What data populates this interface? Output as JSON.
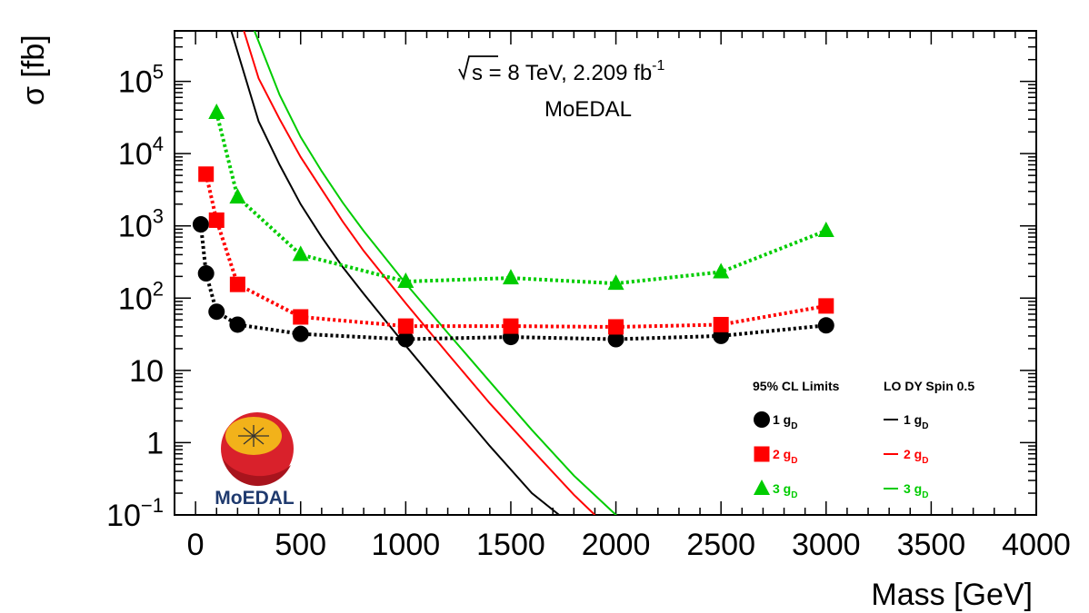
{
  "chart_data": {
    "type": "line",
    "annotation": {
      "energy_prefix": "s = 8 TeV, 2.209 fb",
      "energy_sup": "-1",
      "experiment": "MoEDAL"
    },
    "xlabel": "Mass [GeV]",
    "ylabel": "σ [fb]",
    "xlim": [
      -100,
      4000
    ],
    "ylim": [
      0.1,
      500000
    ],
    "yscale": "log",
    "x_ticks": [
      0,
      500,
      1000,
      1500,
      2000,
      2500,
      3000,
      3500,
      4000
    ],
    "x_tick_labels": [
      "0",
      "500",
      "1000",
      "1500",
      "2000",
      "2500",
      "3000",
      "3500",
      "4000"
    ],
    "y_ticks": [
      0.1,
      1,
      10,
      100,
      1000,
      10000,
      100000
    ],
    "y_tick_labels": [
      {
        "base": "10",
        "sup": "−1"
      },
      {
        "base": "1",
        "sup": ""
      },
      {
        "base": "10",
        "sup": ""
      },
      {
        "base": "10",
        "sup": "2"
      },
      {
        "base": "10",
        "sup": "3"
      },
      {
        "base": "10",
        "sup": "4"
      },
      {
        "base": "10",
        "sup": "5"
      }
    ],
    "legend": {
      "header_limits": "95% CL Limits",
      "header_theory": "LO DY Spin 0.5",
      "position": "bottom-right"
    },
    "limit_series": [
      {
        "name": "1",
        "sub": "D",
        "prefix": "g",
        "color": "#000000",
        "marker": "circle",
        "x": [
          25,
          50,
          100,
          200,
          500,
          1000,
          1500,
          2000,
          2500,
          3000
        ],
        "y": [
          1050,
          220,
          65,
          43,
          32,
          27,
          29,
          27,
          30,
          42
        ]
      },
      {
        "name": "2",
        "sub": "D",
        "prefix": "g",
        "color": "#ff0000",
        "marker": "square",
        "x": [
          50,
          100,
          200,
          500,
          1000,
          1500,
          2000,
          2500,
          3000
        ],
        "y": [
          5200,
          1200,
          155,
          55,
          41,
          41,
          40,
          43,
          78
        ]
      },
      {
        "name": "3",
        "sub": "D",
        "prefix": "g",
        "color": "#00cc00",
        "marker": "triangle",
        "x": [
          100,
          200,
          500,
          1000,
          1500,
          2000,
          2500,
          3000
        ],
        "y": [
          37000,
          2500,
          400,
          170,
          190,
          160,
          230,
          860
        ]
      }
    ],
    "theory_series": [
      {
        "name": "1",
        "sub": "D",
        "prefix": "g",
        "color": "#000000",
        "x": [
          170,
          300,
          400,
          500,
          600,
          700,
          800,
          1000,
          1200,
          1400,
          1600,
          1730
        ],
        "y": [
          500000,
          28000,
          7000,
          2000,
          700,
          270,
          115,
          22,
          4.4,
          0.9,
          0.2,
          0.1
        ]
      },
      {
        "name": "2",
        "sub": "D",
        "prefix": "g",
        "color": "#ff0000",
        "x": [
          230,
          300,
          400,
          500,
          600,
          700,
          800,
          1000,
          1200,
          1400,
          1600,
          1800,
          1900
        ],
        "y": [
          500000,
          110000,
          30000,
          9000,
          3200,
          1150,
          450,
          85,
          17,
          3.5,
          0.8,
          0.19,
          0.1
        ]
      },
      {
        "name": "3",
        "sub": "D",
        "prefix": "g",
        "color": "#00cc00",
        "x": [
          280,
          400,
          500,
          600,
          700,
          800,
          1000,
          1200,
          1400,
          1600,
          1800,
          2000,
          2020
        ],
        "y": [
          500000,
          65000,
          17000,
          5700,
          2100,
          850,
          160,
          33,
          7,
          1.5,
          0.35,
          0.1,
          0.09
        ]
      }
    ]
  },
  "logo": {
    "text": "MoEDAL",
    "colors": {
      "outer": "#d9212b",
      "inner": "#f2b21a",
      "shadow": "#a8141d"
    }
  }
}
